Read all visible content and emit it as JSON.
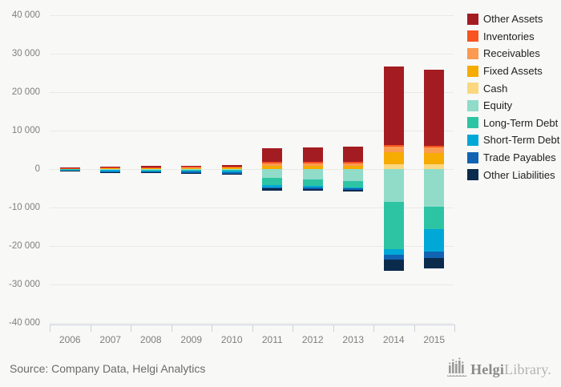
{
  "chart_data": {
    "type": "bar",
    "variant": "stacked-diverging",
    "title": "",
    "xlabel": "",
    "ylabel": "",
    "categories": [
      "2006",
      "2007",
      "2008",
      "2009",
      "2010",
      "2011",
      "2012",
      "2013",
      "2014",
      "2015"
    ],
    "y_axis": {
      "min": -40000,
      "max": 40000,
      "step": 10000,
      "tick_labels": [
        "40 000",
        "30 000",
        "20 000",
        "10 000",
        "0",
        "-10 000",
        "-20 000",
        "-30 000",
        "-40 000"
      ],
      "grid": true
    },
    "legend_position": "right",
    "series": [
      {
        "name": "Other Assets",
        "color": "#a31c21",
        "direction": "up",
        "values": [
          150,
          250,
          300,
          300,
          400,
          3700,
          3800,
          4000,
          20400,
          19700
        ]
      },
      {
        "name": "Inventories",
        "color": "#f8541f",
        "direction": "up",
        "values": [
          30,
          50,
          60,
          60,
          80,
          300,
          300,
          250,
          350,
          400
        ]
      },
      {
        "name": "Receivables",
        "color": "#fb9a51",
        "direction": "up",
        "values": [
          80,
          150,
          160,
          180,
          220,
          700,
          700,
          700,
          1450,
          1500
        ]
      },
      {
        "name": "Fixed Assets",
        "color": "#f6ab00",
        "direction": "up",
        "values": [
          100,
          200,
          220,
          250,
          320,
          700,
          750,
          750,
          3100,
          2900
        ]
      },
      {
        "name": "Cash",
        "color": "#fbd880",
        "direction": "up",
        "values": [
          40,
          50,
          60,
          60,
          80,
          100,
          100,
          100,
          1300,
          1250
        ]
      },
      {
        "name": "Equity",
        "color": "#90dcc9",
        "direction": "down",
        "values": [
          80,
          150,
          200,
          200,
          250,
          2300,
          2800,
          3100,
          8500,
          9700
        ]
      },
      {
        "name": "Long-Term Debt",
        "color": "#2dc4a4",
        "direction": "down",
        "values": [
          100,
          150,
          150,
          200,
          250,
          1900,
          1600,
          1600,
          12300,
          5900
        ]
      },
      {
        "name": "Short-Term Debt",
        "color": "#00a8d7",
        "direction": "down",
        "values": [
          150,
          250,
          250,
          300,
          400,
          500,
          350,
          350,
          1400,
          5900
        ]
      },
      {
        "name": "Trade Payables",
        "color": "#1263b2",
        "direction": "down",
        "values": [
          100,
          200,
          250,
          250,
          300,
          300,
          400,
          300,
          1400,
          1700
        ]
      },
      {
        "name": "Other Liabilities",
        "color": "#0b2b4c",
        "direction": "down",
        "values": [
          70,
          150,
          150,
          150,
          200,
          600,
          550,
          550,
          2800,
          2700
        ]
      }
    ]
  },
  "footer": {
    "source": "Source: Company Data, Helgi Analytics"
  },
  "logo": {
    "name": "HelgiLibrary",
    "part_bold": "Helgi",
    "part_light": "Library."
  },
  "colors": {
    "background": "#f8f8f7",
    "gridline": "#e9e9e6",
    "axis_line": "#c9d1dc",
    "axis_text": "#7f7f7f",
    "legend_text": "#1f1f1f"
  }
}
